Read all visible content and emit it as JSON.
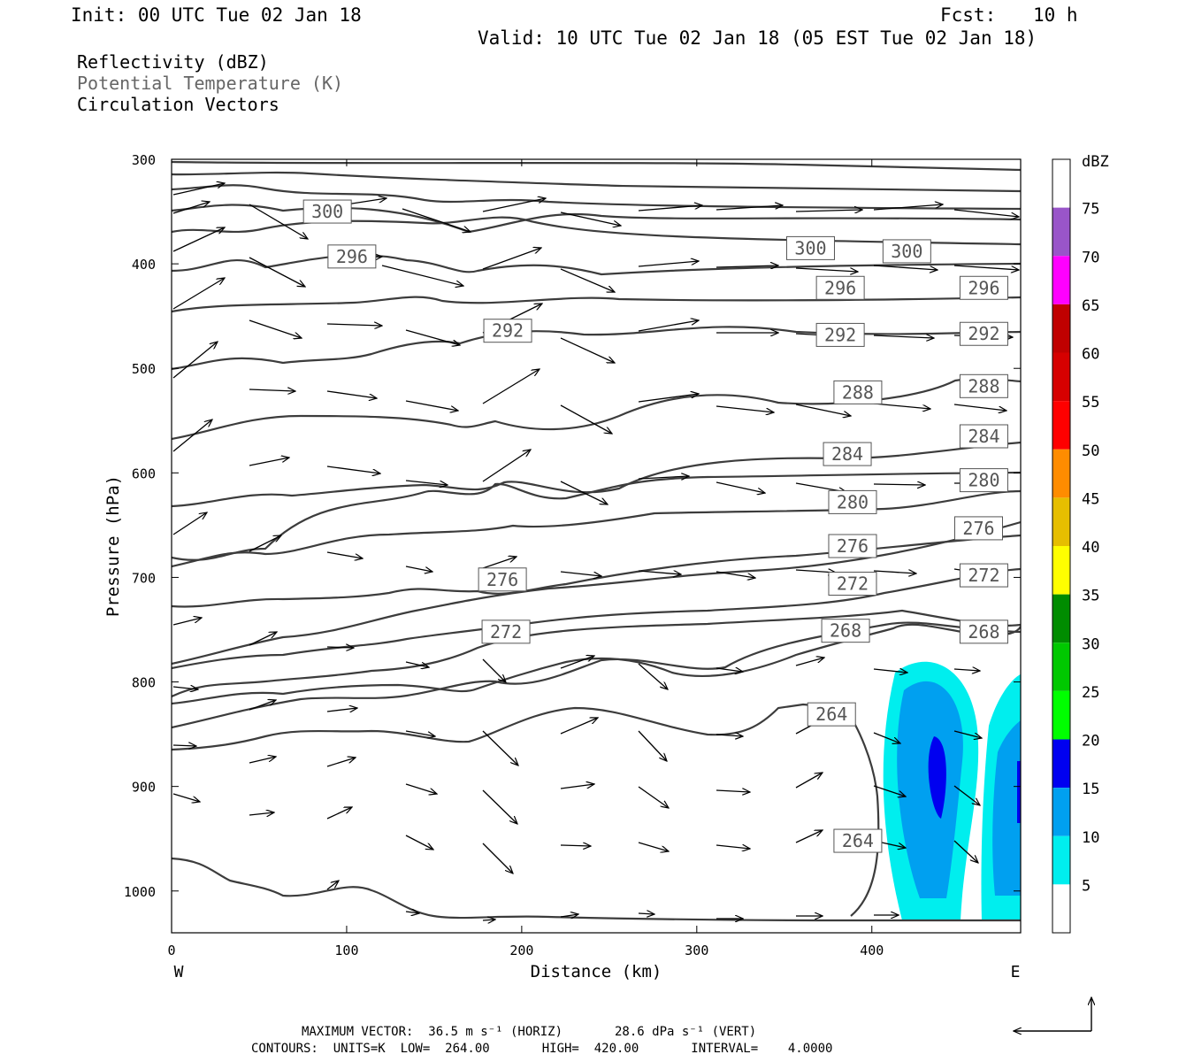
{
  "header": {
    "init": "Init: 00 UTC Tue 02 Jan 18",
    "fcst_label": "Fcst:",
    "fcst_value": "10 h",
    "valid": "Valid: 10 UTC Tue 02 Jan 18 (05 EST Tue 02 Jan 18)"
  },
  "legend": {
    "reflectivity": "Reflectivity (dBZ)",
    "theta": "Potential Temperature (K)",
    "vectors": "Circulation Vectors"
  },
  "footer": {
    "max_vector": "MAXIMUM VECTOR:  36.5 m s⁻¹ (HORIZ)       28.6 dPa s⁻¹ (VERT)",
    "contours": "CONTOURS:  UNITS=K  LOW=  264.00       HIGH=  420.00       INTERVAL=    4.0000"
  },
  "chart_data": {
    "type": "cross-section",
    "xlabel": "Distance (km)",
    "ylabel": "Pressure (hPa)",
    "x_left_label": "W",
    "x_right_label": "E",
    "xlim": [
      0,
      485
    ],
    "ylim": [
      1040,
      300
    ],
    "x_ticks": [
      0,
      100,
      200,
      300,
      400
    ],
    "y_ticks": [
      300,
      400,
      500,
      600,
      700,
      800,
      900,
      1000
    ],
    "colorbar": {
      "title": "dBZ",
      "labels": [
        5,
        10,
        15,
        20,
        25,
        30,
        35,
        40,
        45,
        50,
        55,
        60,
        65,
        70,
        75
      ],
      "colors": [
        "#ffffff",
        "#00eeee",
        "#00a0f0",
        "#0000f0",
        "#00ff00",
        "#00c800",
        "#008c00",
        "#ffff00",
        "#e6be00",
        "#ff8c00",
        "#ff0000",
        "#d60000",
        "#c00000",
        "#ff00ff",
        "#9955c9",
        "#ffffff"
      ]
    },
    "contour_labels": [
      {
        "text": "300",
        "x": 89,
        "p": 350
      },
      {
        "text": "296",
        "x": 103,
        "p": 393
      },
      {
        "text": "300",
        "x": 365,
        "p": 385
      },
      {
        "text": "300",
        "x": 420,
        "p": 388
      },
      {
        "text": "296",
        "x": 382,
        "p": 423
      },
      {
        "text": "296",
        "x": 464,
        "p": 423
      },
      {
        "text": "292",
        "x": 192,
        "p": 464
      },
      {
        "text": "292",
        "x": 382,
        "p": 468
      },
      {
        "text": "292",
        "x": 464,
        "p": 467
      },
      {
        "text": "288",
        "x": 392,
        "p": 523
      },
      {
        "text": "288",
        "x": 464,
        "p": 517
      },
      {
        "text": "284",
        "x": 386,
        "p": 582
      },
      {
        "text": "284",
        "x": 464,
        "p": 565
      },
      {
        "text": "280",
        "x": 389,
        "p": 628
      },
      {
        "text": "280",
        "x": 464,
        "p": 607
      },
      {
        "text": "276",
        "x": 389,
        "p": 670
      },
      {
        "text": "276",
        "x": 461,
        "p": 653
      },
      {
        "text": "276",
        "x": 189,
        "p": 702
      },
      {
        "text": "272",
        "x": 389,
        "p": 706
      },
      {
        "text": "272",
        "x": 464,
        "p": 698
      },
      {
        "text": "272",
        "x": 191,
        "p": 752
      },
      {
        "text": "268",
        "x": 385,
        "p": 751
      },
      {
        "text": "268",
        "x": 464,
        "p": 752
      },
      {
        "text": "264",
        "x": 377,
        "p": 831
      },
      {
        "text": "264",
        "x": 392,
        "p": 952
      }
    ]
  }
}
